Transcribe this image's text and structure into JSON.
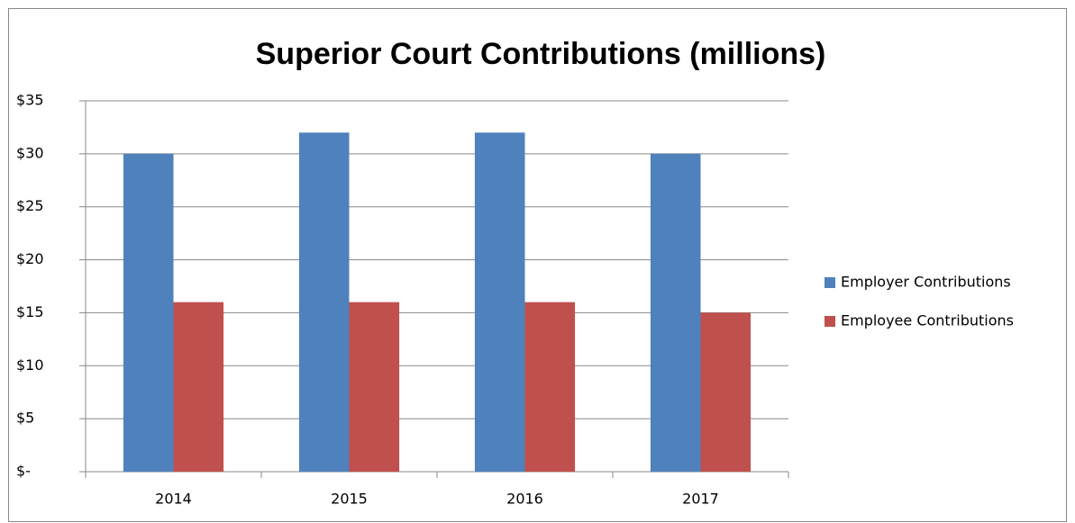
{
  "chart_data": {
    "type": "bar",
    "title": "Superior Court Contributions (millions)",
    "categories": [
      "2014",
      "2015",
      "2016",
      "2017"
    ],
    "series": [
      {
        "name": "Employer Contributions",
        "color": "#4f81bd",
        "values": [
          30,
          32,
          32,
          30
        ]
      },
      {
        "name": "Employee Contributions",
        "color": "#c0504d",
        "values": [
          16,
          16,
          16,
          15
        ]
      }
    ],
    "ylim": [
      0,
      35
    ],
    "yticks": [
      {
        "value": 0,
        "label": "$-"
      },
      {
        "value": 5,
        "label": "$5"
      },
      {
        "value": 10,
        "label": "$10"
      },
      {
        "value": 15,
        "label": "$15"
      },
      {
        "value": 20,
        "label": "$20"
      },
      {
        "value": 25,
        "label": "$25"
      },
      {
        "value": 30,
        "label": "$30"
      },
      {
        "value": 35,
        "label": "$35"
      }
    ],
    "grid": true,
    "legend": "right"
  }
}
